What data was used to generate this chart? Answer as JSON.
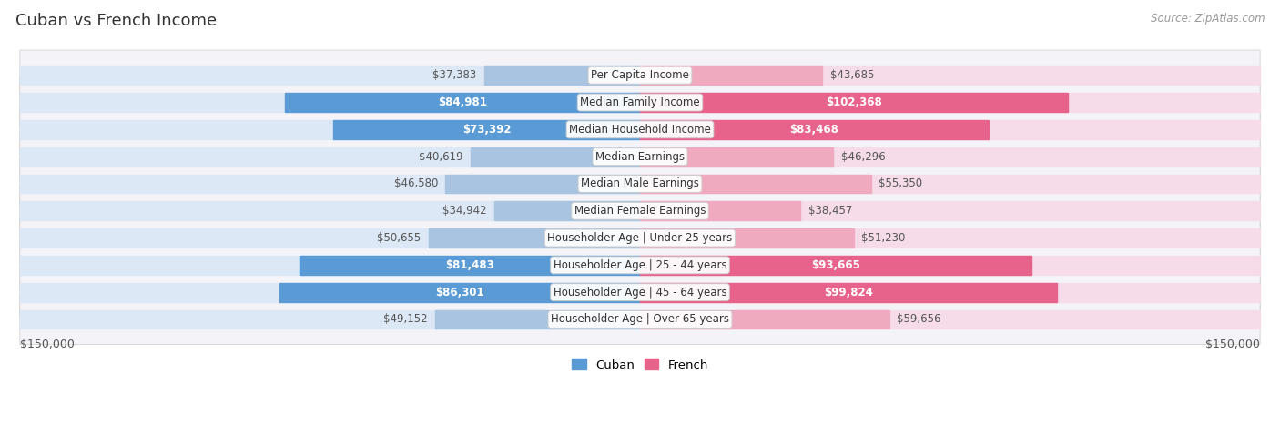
{
  "title": "Cuban vs French Income",
  "source": "Source: ZipAtlas.com",
  "categories": [
    "Per Capita Income",
    "Median Family Income",
    "Median Household Income",
    "Median Earnings",
    "Median Male Earnings",
    "Median Female Earnings",
    "Householder Age | Under 25 years",
    "Householder Age | 25 - 44 years",
    "Householder Age | 45 - 64 years",
    "Householder Age | Over 65 years"
  ],
  "cuban_values": [
    37383,
    84981,
    73392,
    40619,
    46580,
    34942,
    50655,
    81483,
    86301,
    49152
  ],
  "french_values": [
    43685,
    102368,
    83468,
    46296,
    55350,
    38457,
    51230,
    93665,
    99824,
    59656
  ],
  "cuban_color_dark": "#5b9bd5",
  "cuban_color_light": "#a8c4e0",
  "french_color_dark": "#e8638c",
  "french_color_light": "#f0aac0",
  "cuban_bg": "#dce8f5",
  "french_bg": "#f5dce8",
  "row_bg": "#e8e8ee",
  "max_value": 150000,
  "large_threshold": 65000,
  "label_fontsize": 8.5,
  "title_fontsize": 13,
  "source_fontsize": 8.5
}
